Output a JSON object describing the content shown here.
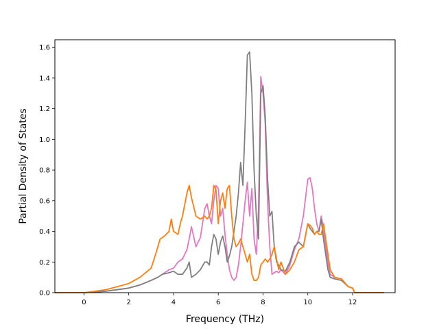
{
  "chart_data": {
    "type": "line",
    "title": "",
    "xlabel": "Frequency (THz)",
    "ylabel": "Partial Density of States",
    "xlim": [
      -1.3,
      13.9
    ],
    "ylim": [
      0.0,
      1.65
    ],
    "xticks": [
      0,
      2,
      4,
      6,
      8,
      10,
      12
    ],
    "xtick_labels": [
      "0",
      "2",
      "4",
      "6",
      "8",
      "10",
      "12"
    ],
    "yticks": [
      0.0,
      0.2,
      0.4,
      0.6,
      0.8,
      1.0,
      1.2,
      1.4,
      1.6
    ],
    "ytick_labels": [
      "0.0",
      "0.2",
      "0.4",
      "0.6",
      "0.8",
      "1.0",
      "1.2",
      "1.4",
      "1.6"
    ],
    "grid": false,
    "legend": "none",
    "series": [
      {
        "color": "#e377c2",
        "x": [
          -1.3,
          0,
          1,
          2,
          2.5,
          3,
          3.3,
          3.5,
          3.8,
          4.0,
          4.2,
          4.4,
          4.6,
          4.7,
          4.8,
          5.0,
          5.2,
          5.4,
          5.5,
          5.6,
          5.7,
          5.8,
          5.9,
          6.0,
          6.1,
          6.2,
          6.3,
          6.4,
          6.5,
          6.6,
          6.7,
          6.8,
          6.9,
          7.0,
          7.1,
          7.2,
          7.3,
          7.4,
          7.5,
          7.6,
          7.7,
          7.8,
          7.9,
          8.0,
          8.1,
          8.2,
          8.3,
          8.4,
          8.5,
          8.6,
          8.7,
          8.8,
          9.0,
          9.2,
          9.4,
          9.6,
          9.8,
          10.0,
          10.1,
          10.2,
          10.3,
          10.4,
          10.5,
          10.6,
          10.7,
          10.8,
          10.9,
          11.0,
          11.2,
          11.5,
          11.8,
          12.0,
          12.1,
          13.4
        ],
        "y": [
          0.0,
          0.0,
          0.01,
          0.03,
          0.05,
          0.08,
          0.1,
          0.12,
          0.15,
          0.16,
          0.2,
          0.22,
          0.28,
          0.35,
          0.43,
          0.3,
          0.36,
          0.55,
          0.58,
          0.5,
          0.45,
          0.6,
          0.7,
          0.68,
          0.5,
          0.55,
          0.38,
          0.25,
          0.15,
          0.1,
          0.08,
          0.1,
          0.18,
          0.3,
          0.45,
          0.6,
          0.72,
          0.5,
          0.68,
          0.35,
          0.25,
          0.55,
          1.41,
          1.3,
          1.1,
          0.6,
          0.3,
          0.12,
          0.13,
          0.14,
          0.13,
          0.15,
          0.12,
          0.18,
          0.28,
          0.35,
          0.5,
          0.74,
          0.75,
          0.68,
          0.55,
          0.45,
          0.4,
          0.5,
          0.42,
          0.3,
          0.2,
          0.12,
          0.1,
          0.09,
          0.04,
          0.03,
          0.0,
          0.0
        ]
      },
      {
        "color": "#7f7f7f",
        "x": [
          -1.3,
          0,
          1,
          2,
          2.5,
          3,
          3.3,
          3.5,
          3.8,
          4.0,
          4.2,
          4.4,
          4.6,
          4.7,
          4.8,
          5.0,
          5.2,
          5.4,
          5.5,
          5.6,
          5.7,
          5.8,
          5.9,
          6.0,
          6.1,
          6.2,
          6.3,
          6.4,
          6.5,
          6.6,
          6.7,
          6.8,
          6.9,
          7.0,
          7.1,
          7.2,
          7.3,
          7.4,
          7.5,
          7.6,
          7.7,
          7.8,
          7.9,
          8.0,
          8.1,
          8.2,
          8.3,
          8.4,
          8.5,
          8.6,
          8.7,
          8.8,
          9.0,
          9.2,
          9.4,
          9.6,
          9.8,
          10.0,
          10.1,
          10.2,
          10.3,
          10.4,
          10.5,
          10.6,
          10.7,
          10.8,
          10.9,
          11.0,
          11.2,
          11.5,
          11.8,
          12.0,
          12.1,
          13.4
        ],
        "y": [
          0.0,
          0.0,
          0.01,
          0.03,
          0.05,
          0.08,
          0.1,
          0.12,
          0.13,
          0.14,
          0.12,
          0.12,
          0.16,
          0.2,
          0.1,
          0.12,
          0.15,
          0.2,
          0.2,
          0.18,
          0.3,
          0.38,
          0.35,
          0.25,
          0.33,
          0.37,
          0.3,
          0.2,
          0.24,
          0.3,
          0.4,
          0.5,
          0.65,
          0.85,
          0.7,
          1.1,
          1.55,
          1.57,
          1.3,
          0.8,
          0.5,
          0.35,
          1.3,
          1.35,
          1.15,
          0.75,
          0.5,
          0.53,
          0.3,
          0.2,
          0.18,
          0.15,
          0.14,
          0.2,
          0.3,
          0.33,
          0.3,
          0.45,
          0.42,
          0.4,
          0.38,
          0.4,
          0.4,
          0.48,
          0.35,
          0.25,
          0.15,
          0.1,
          0.09,
          0.08,
          0.04,
          0.03,
          0.0,
          0.0
        ]
      },
      {
        "color": "#ff7f0e",
        "x": [
          -1.3,
          0,
          1,
          2,
          2.5,
          3,
          3.2,
          3.4,
          3.6,
          3.8,
          3.9,
          4.0,
          4.2,
          4.3,
          4.4,
          4.6,
          4.7,
          4.8,
          5.0,
          5.2,
          5.4,
          5.5,
          5.6,
          5.7,
          5.8,
          5.9,
          6.0,
          6.1,
          6.2,
          6.3,
          6.4,
          6.5,
          6.6,
          6.7,
          6.8,
          6.9,
          7.0,
          7.1,
          7.2,
          7.3,
          7.4,
          7.5,
          7.6,
          7.7,
          7.8,
          7.9,
          8.0,
          8.1,
          8.2,
          8.3,
          8.4,
          8.5,
          8.6,
          8.7,
          8.8,
          9.0,
          9.2,
          9.4,
          9.6,
          9.8,
          10.0,
          10.1,
          10.2,
          10.3,
          10.4,
          10.5,
          10.6,
          10.7,
          10.8,
          10.9,
          11.0,
          11.2,
          11.5,
          11.8,
          12.0,
          12.1,
          13.4
        ],
        "y": [
          0.0,
          0.0,
          0.02,
          0.06,
          0.1,
          0.16,
          0.25,
          0.35,
          0.37,
          0.4,
          0.48,
          0.4,
          0.38,
          0.45,
          0.5,
          0.65,
          0.7,
          0.62,
          0.5,
          0.48,
          0.5,
          0.48,
          0.5,
          0.55,
          0.7,
          0.67,
          0.45,
          0.6,
          0.65,
          0.55,
          0.68,
          0.7,
          0.5,
          0.35,
          0.3,
          0.32,
          0.35,
          0.3,
          0.25,
          0.2,
          0.25,
          0.12,
          0.08,
          0.08,
          0.1,
          0.18,
          0.2,
          0.22,
          0.2,
          0.22,
          0.25,
          0.3,
          0.22,
          0.15,
          0.2,
          0.12,
          0.15,
          0.2,
          0.28,
          0.3,
          0.45,
          0.44,
          0.42,
          0.38,
          0.4,
          0.38,
          0.38,
          0.45,
          0.35,
          0.25,
          0.15,
          0.1,
          0.09,
          0.04,
          0.03,
          0.0,
          0.0
        ]
      }
    ]
  }
}
